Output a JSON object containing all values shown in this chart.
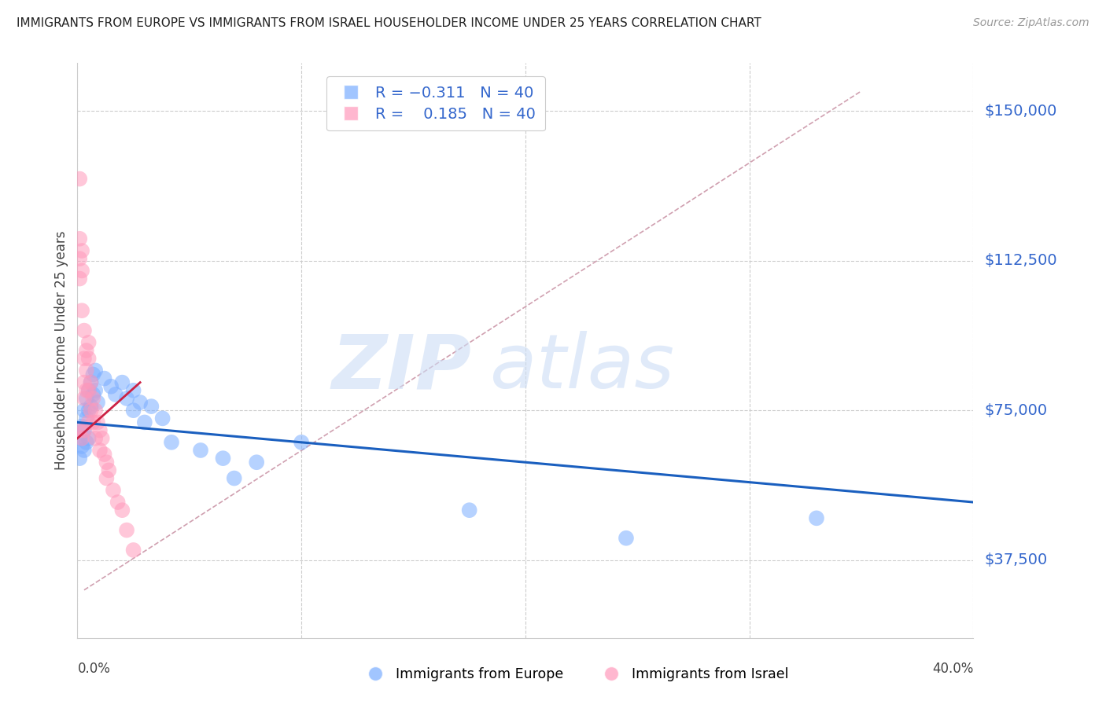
{
  "title": "IMMIGRANTS FROM EUROPE VS IMMIGRANTS FROM ISRAEL HOUSEHOLDER INCOME UNDER 25 YEARS CORRELATION CHART",
  "source": "Source: ZipAtlas.com",
  "ylabel": "Householder Income Under 25 years",
  "xlim": [
    0.0,
    0.4
  ],
  "ylim": [
    18000,
    162000
  ],
  "yticks": [
    37500,
    75000,
    112500,
    150000
  ],
  "ytick_labels": [
    "$37,500",
    "$75,000",
    "$112,500",
    "$150,000"
  ],
  "europe_R": -0.311,
  "europe_N": 40,
  "israel_R": 0.185,
  "israel_N": 40,
  "europe_color": "#7aadff",
  "israel_color": "#ff99bb",
  "europe_line_color": "#1a5fbf",
  "israel_line_color": "#cc2244",
  "diag_color": "#d0a0b0",
  "europe_x": [
    0.001,
    0.001,
    0.002,
    0.002,
    0.003,
    0.003,
    0.003,
    0.004,
    0.004,
    0.004,
    0.005,
    0.005,
    0.005,
    0.006,
    0.006,
    0.007,
    0.007,
    0.008,
    0.008,
    0.009,
    0.012,
    0.015,
    0.017,
    0.02,
    0.022,
    0.025,
    0.025,
    0.028,
    0.03,
    0.033,
    0.038,
    0.042,
    0.055,
    0.065,
    0.07,
    0.08,
    0.1,
    0.175,
    0.245,
    0.33
  ],
  "europe_y": [
    68000,
    63000,
    71000,
    66000,
    75000,
    70000,
    65000,
    78000,
    73000,
    67000,
    80000,
    75000,
    68000,
    82000,
    76000,
    84000,
    79000,
    85000,
    80000,
    77000,
    83000,
    81000,
    79000,
    82000,
    78000,
    80000,
    75000,
    77000,
    72000,
    76000,
    73000,
    67000,
    65000,
    63000,
    58000,
    62000,
    67000,
    50000,
    43000,
    48000
  ],
  "israel_x": [
    0.001,
    0.001,
    0.001,
    0.001,
    0.001,
    0.002,
    0.002,
    0.002,
    0.002,
    0.003,
    0.003,
    0.003,
    0.003,
    0.003,
    0.004,
    0.004,
    0.004,
    0.005,
    0.005,
    0.005,
    0.005,
    0.006,
    0.006,
    0.007,
    0.007,
    0.008,
    0.008,
    0.009,
    0.01,
    0.01,
    0.011,
    0.012,
    0.013,
    0.013,
    0.014,
    0.016,
    0.018,
    0.02,
    0.022,
    0.025
  ],
  "israel_y": [
    133000,
    118000,
    113000,
    108000,
    70000,
    115000,
    110000,
    100000,
    68000,
    95000,
    88000,
    82000,
    78000,
    70000,
    90000,
    85000,
    80000,
    92000,
    88000,
    80000,
    72000,
    82000,
    75000,
    78000,
    72000,
    75000,
    68000,
    72000,
    70000,
    65000,
    68000,
    64000,
    62000,
    58000,
    60000,
    55000,
    52000,
    50000,
    45000,
    40000
  ],
  "europe_line_x": [
    0.0,
    0.4
  ],
  "europe_line_y": [
    72000,
    52000
  ],
  "israel_line_x": [
    0.0,
    0.028
  ],
  "israel_line_y": [
    68000,
    82000
  ],
  "diag_line_x": [
    0.003,
    0.35
  ],
  "diag_line_y": [
    30000,
    155000
  ]
}
